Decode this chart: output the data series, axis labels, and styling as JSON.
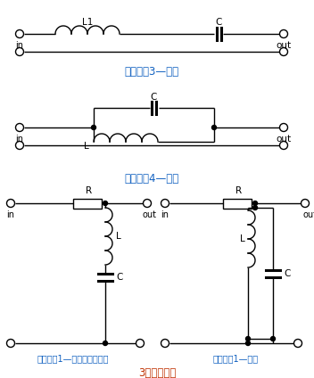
{
  "circuit1_label": "信号滤波3—带通",
  "circuit2_label": "信号滤波4—带阻",
  "circuit3_label": "信号滤波1—带阻（陷波器）",
  "circuit4_label": "信号滤波1—带通",
  "bottom_label": "3、信号滤波",
  "bg_color": "#ffffff",
  "label_color_blue": "#1060c0",
  "label_color_red": "#c03000",
  "figsize": [
    3.52,
    4.24
  ],
  "dpi": 100
}
